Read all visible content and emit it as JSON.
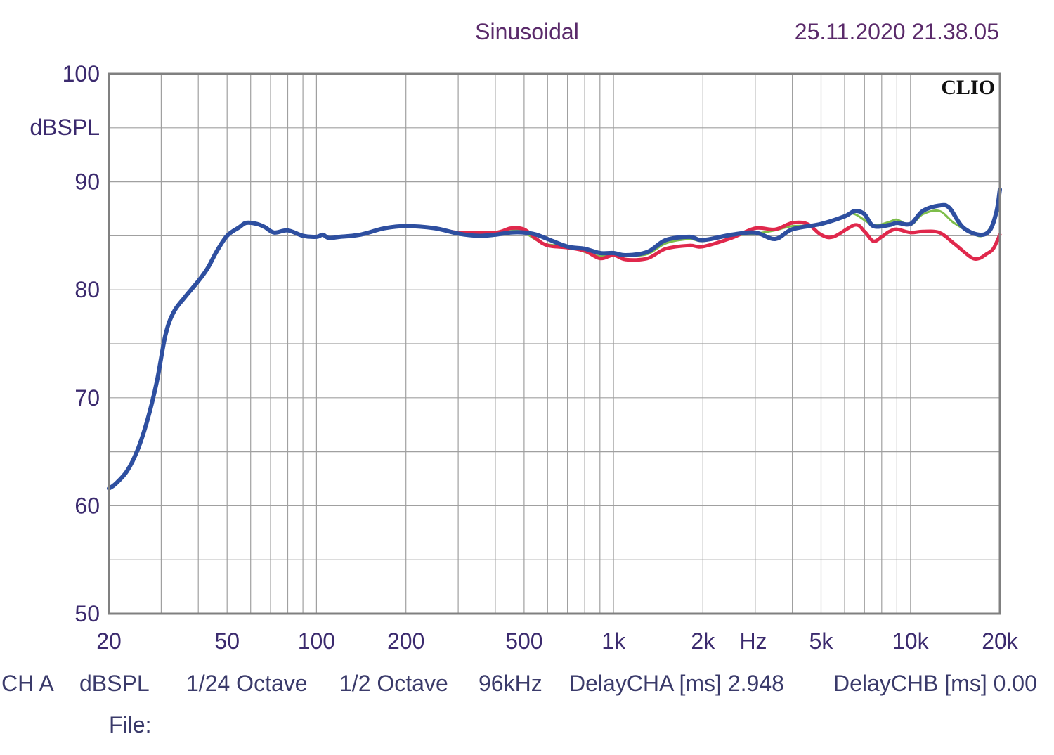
{
  "header": {
    "mode": "Sinusoidal",
    "datetime": "25.11.2020 21.38.05"
  },
  "logo": "CLIO",
  "footer": {
    "channel": "CH A",
    "unit": "dBSPL",
    "resolution": "1/24 Octave",
    "smoothing": "1/2 Octave",
    "sample_rate": "96kHz",
    "delay_a": "DelayCHA [ms] 2.948",
    "delay_b": "DelayCHB [ms] 0.00",
    "file_label": "File:"
  },
  "colors": {
    "background": "#ffffff",
    "grid": "#a0a0a0",
    "frame": "#808080",
    "text": "#3b2a6e"
  },
  "chart_data": {
    "type": "line",
    "ylabel": "dBSPL",
    "x_unit_label": "Hz",
    "x_scale": "log",
    "xlim": [
      20,
      20000
    ],
    "ylim": [
      50,
      100
    ],
    "grid": true,
    "x_ticks": [
      {
        "value": 20,
        "label": "20"
      },
      {
        "value": 50,
        "label": "50"
      },
      {
        "value": 100,
        "label": "100"
      },
      {
        "value": 200,
        "label": "200"
      },
      {
        "value": 500,
        "label": "500"
      },
      {
        "value": 1000,
        "label": "1k"
      },
      {
        "value": 2000,
        "label": "2k"
      },
      {
        "value": 5000,
        "label": "5k"
      },
      {
        "value": 10000,
        "label": "10k"
      },
      {
        "value": 20000,
        "label": "20k"
      }
    ],
    "y_ticks": [
      {
        "value": 100,
        "label": "100"
      },
      {
        "value": 90,
        "label": "90"
      },
      {
        "value": 80,
        "label": "80"
      },
      {
        "value": 70,
        "label": "70"
      },
      {
        "value": 60,
        "label": "60"
      },
      {
        "value": 50,
        "label": "50"
      }
    ],
    "series": [
      {
        "color": "#7dbd4a",
        "width": 3,
        "points": [
          [
            120,
            84.9
          ],
          [
            140,
            85.1
          ],
          [
            170,
            85.7
          ],
          [
            200,
            85.9
          ],
          [
            250,
            85.7
          ],
          [
            300,
            85.3
          ],
          [
            400,
            85.3
          ],
          [
            450,
            85.6
          ],
          [
            500,
            85.3
          ],
          [
            550,
            84.6
          ],
          [
            600,
            84.2
          ],
          [
            700,
            84.0
          ],
          [
            800,
            83.5
          ],
          [
            900,
            83.1
          ],
          [
            1000,
            83.3
          ],
          [
            1100,
            83.1
          ],
          [
            1300,
            83.3
          ],
          [
            1500,
            84.3
          ],
          [
            1800,
            84.7
          ],
          [
            2000,
            84.5
          ],
          [
            2500,
            85.0
          ],
          [
            3000,
            85.2
          ],
          [
            3500,
            85.5
          ],
          [
            4000,
            85.9
          ],
          [
            5000,
            86.0
          ],
          [
            6000,
            86.9
          ],
          [
            6500,
            87.0
          ],
          [
            7500,
            86.0
          ],
          [
            8500,
            86.3
          ],
          [
            9000,
            86.5
          ],
          [
            10000,
            86.0
          ],
          [
            11000,
            87.0
          ],
          [
            12500,
            87.3
          ],
          [
            14000,
            86.2
          ],
          [
            16000,
            85.3
          ],
          [
            17500,
            85.0
          ],
          [
            19000,
            86.2
          ],
          [
            20000,
            87.8
          ]
        ]
      },
      {
        "color": "#e0284c",
        "width": 5,
        "points": [
          [
            120,
            84.9
          ],
          [
            140,
            85.1
          ],
          [
            170,
            85.7
          ],
          [
            200,
            85.9
          ],
          [
            250,
            85.7
          ],
          [
            300,
            85.3
          ],
          [
            400,
            85.3
          ],
          [
            450,
            85.7
          ],
          [
            500,
            85.6
          ],
          [
            550,
            84.7
          ],
          [
            600,
            84.1
          ],
          [
            700,
            83.9
          ],
          [
            800,
            83.6
          ],
          [
            900,
            82.9
          ],
          [
            1000,
            83.2
          ],
          [
            1100,
            82.8
          ],
          [
            1300,
            82.9
          ],
          [
            1500,
            83.8
          ],
          [
            1800,
            84.1
          ],
          [
            2000,
            84.0
          ],
          [
            2500,
            84.8
          ],
          [
            3000,
            85.7
          ],
          [
            3500,
            85.6
          ],
          [
            4000,
            86.2
          ],
          [
            4500,
            86.1
          ],
          [
            5000,
            85.1
          ],
          [
            5500,
            84.9
          ],
          [
            6500,
            86.0
          ],
          [
            7000,
            85.4
          ],
          [
            7500,
            84.5
          ],
          [
            8000,
            84.9
          ],
          [
            8500,
            85.4
          ],
          [
            9000,
            85.6
          ],
          [
            10000,
            85.3
          ],
          [
            11000,
            85.4
          ],
          [
            12500,
            85.3
          ],
          [
            14000,
            84.3
          ],
          [
            16000,
            83.0
          ],
          [
            17000,
            82.9
          ],
          [
            18000,
            83.3
          ],
          [
            19000,
            83.8
          ],
          [
            20000,
            85.1
          ]
        ]
      },
      {
        "color": "#2e4fa0",
        "width": 6,
        "points": [
          [
            20,
            61.6
          ],
          [
            21,
            62.0
          ],
          [
            23,
            63.2
          ],
          [
            25,
            65.2
          ],
          [
            27,
            68.0
          ],
          [
            29,
            71.5
          ],
          [
            31,
            75.8
          ],
          [
            33,
            77.9
          ],
          [
            36,
            79.3
          ],
          [
            40,
            80.8
          ],
          [
            43,
            82.0
          ],
          [
            46,
            83.5
          ],
          [
            50,
            85.0
          ],
          [
            55,
            85.8
          ],
          [
            58,
            86.2
          ],
          [
            63,
            86.1
          ],
          [
            67,
            85.8
          ],
          [
            72,
            85.3
          ],
          [
            80,
            85.5
          ],
          [
            90,
            85.0
          ],
          [
            100,
            84.9
          ],
          [
            105,
            85.1
          ],
          [
            110,
            84.8
          ],
          [
            120,
            84.9
          ],
          [
            140,
            85.1
          ],
          [
            170,
            85.7
          ],
          [
            200,
            85.9
          ],
          [
            250,
            85.7
          ],
          [
            300,
            85.2
          ],
          [
            350,
            85.0
          ],
          [
            400,
            85.1
          ],
          [
            450,
            85.3
          ],
          [
            500,
            85.3
          ],
          [
            550,
            85.1
          ],
          [
            600,
            84.7
          ],
          [
            700,
            84.0
          ],
          [
            800,
            83.8
          ],
          [
            900,
            83.4
          ],
          [
            1000,
            83.4
          ],
          [
            1100,
            83.2
          ],
          [
            1300,
            83.5
          ],
          [
            1500,
            84.6
          ],
          [
            1800,
            84.9
          ],
          [
            2000,
            84.6
          ],
          [
            2500,
            85.1
          ],
          [
            3000,
            85.3
          ],
          [
            3500,
            84.7
          ],
          [
            4000,
            85.6
          ],
          [
            5000,
            86.1
          ],
          [
            6000,
            86.8
          ],
          [
            6500,
            87.3
          ],
          [
            7000,
            87.0
          ],
          [
            7500,
            85.9
          ],
          [
            8500,
            86.0
          ],
          [
            9000,
            86.2
          ],
          [
            10000,
            86.1
          ],
          [
            11000,
            87.3
          ],
          [
            12500,
            87.8
          ],
          [
            13500,
            87.6
          ],
          [
            15000,
            85.8
          ],
          [
            17000,
            85.1
          ],
          [
            18500,
            85.5
          ],
          [
            19500,
            87.3
          ],
          [
            20000,
            89.3
          ]
        ]
      }
    ]
  }
}
